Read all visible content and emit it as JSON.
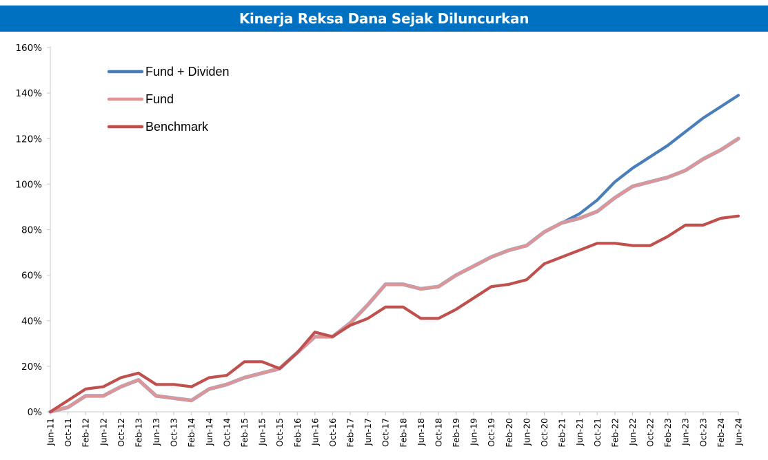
{
  "header": {
    "title": "Kinerja Reksa Dana Sejak Diluncurkan"
  },
  "colors": {
    "title_bg": "#0070c0",
    "fund_dividen": "#4a7ebb",
    "fund": "#de9594",
    "benchmark": "#c0504d",
    "axis": "#d0d0d0"
  },
  "chart_data": {
    "type": "line",
    "title": "Kinerja Reksa Dana Sejak Diluncurkan",
    "xlabel": "",
    "ylabel": "",
    "ylim": [
      0,
      160
    ],
    "yticks": [
      "0%",
      "20%",
      "40%",
      "60%",
      "80%",
      "100%",
      "120%",
      "140%",
      "160%"
    ],
    "grid": false,
    "legend_position": "upper-left-inside",
    "categories": [
      "Jun-11",
      "Oct-11",
      "Feb-12",
      "Jun-12",
      "Oct-12",
      "Feb-13",
      "Jun-13",
      "Oct-13",
      "Feb-14",
      "Jun-14",
      "Oct-14",
      "Feb-15",
      "Jun-15",
      "Oct-15",
      "Feb-16",
      "Jun-16",
      "Oct-16",
      "Feb-17",
      "Jun-17",
      "Oct-17",
      "Feb-18",
      "Jun-18",
      "Oct-18",
      "Feb-19",
      "Jun-19",
      "Oct-19",
      "Feb-20",
      "Jun-20",
      "Oct-20",
      "Feb-21",
      "Jun-21",
      "Oct-21",
      "Feb-22",
      "Jun-22",
      "Oct-22",
      "Feb-23",
      "Jun-23",
      "Oct-23",
      "Feb-24",
      "Jun-24"
    ],
    "series": [
      {
        "name": "Fund + Dividen",
        "values": [
          0,
          2,
          7,
          7,
          11,
          14,
          7,
          6,
          5,
          10,
          12,
          15,
          17,
          19,
          26,
          33,
          33,
          39,
          47,
          56,
          56,
          54,
          55,
          60,
          64,
          68,
          71,
          73,
          79,
          83,
          87,
          93,
          101,
          107,
          112,
          117,
          123,
          129,
          134,
          139
        ]
      },
      {
        "name": "Fund",
        "values": [
          0,
          2,
          7,
          7,
          11,
          14,
          7,
          6,
          5,
          10,
          12,
          15,
          17,
          19,
          26,
          33,
          33,
          39,
          47,
          56,
          56,
          54,
          55,
          60,
          64,
          68,
          71,
          73,
          79,
          83,
          85,
          88,
          94,
          99,
          101,
          103,
          106,
          111,
          115,
          120
        ]
      },
      {
        "name": "Benchmark",
        "values": [
          0,
          5,
          10,
          11,
          15,
          17,
          12,
          12,
          11,
          15,
          16,
          22,
          22,
          19,
          26,
          35,
          33,
          38,
          41,
          46,
          46,
          41,
          41,
          45,
          50,
          55,
          56,
          58,
          65,
          68,
          71,
          74,
          74,
          73,
          73,
          77,
          82,
          82,
          85,
          86
        ]
      }
    ]
  },
  "legend": [
    {
      "label": "Fund + Dividen",
      "color": "#4a7ebb"
    },
    {
      "label": "Fund",
      "color": "#de9594"
    },
    {
      "label": "Benchmark",
      "color": "#c0504d"
    }
  ]
}
